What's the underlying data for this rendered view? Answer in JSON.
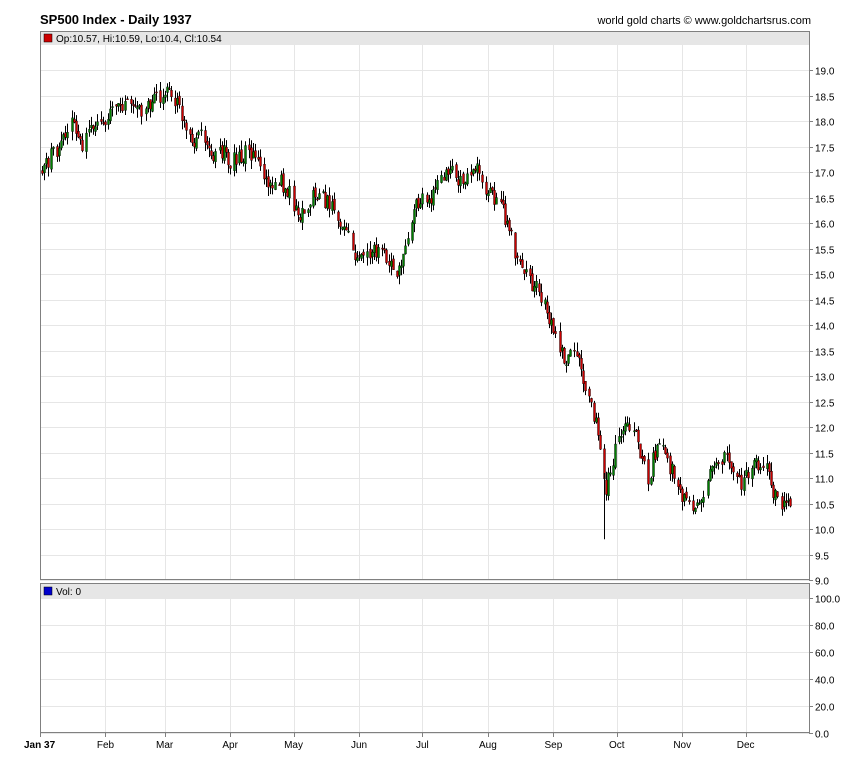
{
  "header": {
    "title": "SP500 Index - Daily 1937",
    "credit": "world gold charts © www.goldchartsrus.com"
  },
  "price_panel": {
    "legend": "Op:10.57, Hi:10.59, Lo:10.4, Cl:10.54",
    "legend_color": "#cc0000"
  },
  "volume_panel": {
    "legend": "Vol: 0",
    "legend_color": "#0000cc"
  },
  "colors": {
    "up": "#008000",
    "down": "#cc0000",
    "wick": "#000000",
    "grid": "#e6e6e6",
    "legend_bar": "#e6e6e6"
  },
  "chart_data": [
    {
      "type": "candlestick",
      "title": "SP500 Index - Daily 1937",
      "ylim": [
        9.0,
        19.5
      ],
      "yticks": [
        "9.0",
        "9.5",
        "10.0",
        "10.5",
        "11.0",
        "11.5",
        "12.0",
        "12.5",
        "13.0",
        "13.5",
        "14.0",
        "14.5",
        "15.0",
        "15.5",
        "16.0",
        "16.5",
        "17.0",
        "17.5",
        "18.0",
        "18.5",
        "19.0"
      ],
      "xlabels": [
        "Jan 37",
        "Feb",
        "Mar",
        "Apr",
        "May",
        "Jun",
        "Jul",
        "Aug",
        "Sep",
        "Oct",
        "Nov",
        "Dec"
      ],
      "close_path": [
        [
          1,
          17.0
        ],
        [
          5,
          17.3
        ],
        [
          10,
          17.6
        ],
        [
          15,
          17.9
        ],
        [
          20,
          17.6
        ],
        [
          26,
          17.9
        ],
        [
          32,
          18.1
        ],
        [
          38,
          18.3
        ],
        [
          44,
          18.3
        ],
        [
          50,
          18.2
        ],
        [
          56,
          18.5
        ],
        [
          60,
          18.6
        ],
        [
          64,
          18.4
        ],
        [
          68,
          18.0
        ],
        [
          73,
          17.6
        ],
        [
          77,
          17.9
        ],
        [
          81,
          17.2
        ],
        [
          85,
          17.5
        ],
        [
          91,
          17.2
        ],
        [
          97,
          17.4
        ],
        [
          103,
          17.2
        ],
        [
          108,
          16.7
        ],
        [
          113,
          16.9
        ],
        [
          118,
          16.6
        ],
        [
          122,
          16.1
        ],
        [
          126,
          16.4
        ],
        [
          131,
          16.6
        ],
        [
          136,
          16.4
        ],
        [
          142,
          16.1
        ],
        [
          146,
          15.9
        ],
        [
          150,
          15.2
        ],
        [
          154,
          15.5
        ],
        [
          160,
          15.4
        ],
        [
          165,
          15.3
        ],
        [
          170,
          15.0
        ],
        [
          174,
          15.6
        ],
        [
          178,
          16.4
        ],
        [
          184,
          16.5
        ],
        [
          189,
          16.8
        ],
        [
          194,
          17.0
        ],
        [
          199,
          16.9
        ],
        [
          204,
          17.0
        ],
        [
          208,
          17.1
        ],
        [
          212,
          16.6
        ],
        [
          217,
          16.4
        ],
        [
          220,
          16.1
        ],
        [
          224,
          15.6
        ],
        [
          228,
          15.1
        ],
        [
          232,
          14.8
        ],
        [
          236,
          14.7
        ],
        [
          240,
          14.2
        ],
        [
          244,
          13.7
        ],
        [
          248,
          13.3
        ],
        [
          252,
          13.6
        ],
        [
          256,
          13.1
        ],
        [
          260,
          12.5
        ],
        [
          264,
          11.9
        ],
        [
          266,
          11.2
        ],
        [
          268,
          10.8
        ],
        [
          272,
          11.6
        ],
        [
          276,
          11.8
        ],
        [
          280,
          12.2
        ],
        [
          284,
          11.4
        ],
        [
          288,
          11.0
        ],
        [
          292,
          11.7
        ],
        [
          296,
          11.5
        ],
        [
          300,
          11.0
        ],
        [
          304,
          10.7
        ],
        [
          308,
          10.3
        ],
        [
          312,
          10.5
        ],
        [
          316,
          11.0
        ],
        [
          320,
          11.2
        ],
        [
          324,
          11.4
        ],
        [
          328,
          11.1
        ],
        [
          332,
          10.9
        ],
        [
          336,
          11.1
        ],
        [
          340,
          11.3
        ],
        [
          344,
          11.2
        ],
        [
          347,
          10.7
        ],
        [
          350,
          10.4
        ],
        [
          353,
          10.6
        ],
        [
          355,
          10.54
        ]
      ]
    },
    {
      "type": "bar",
      "title": "Vol",
      "ylim": [
        0,
        100
      ],
      "yticks": [
        "0.0",
        "20.0",
        "40.0",
        "60.0",
        "80.0",
        "100.0"
      ],
      "values": []
    }
  ]
}
